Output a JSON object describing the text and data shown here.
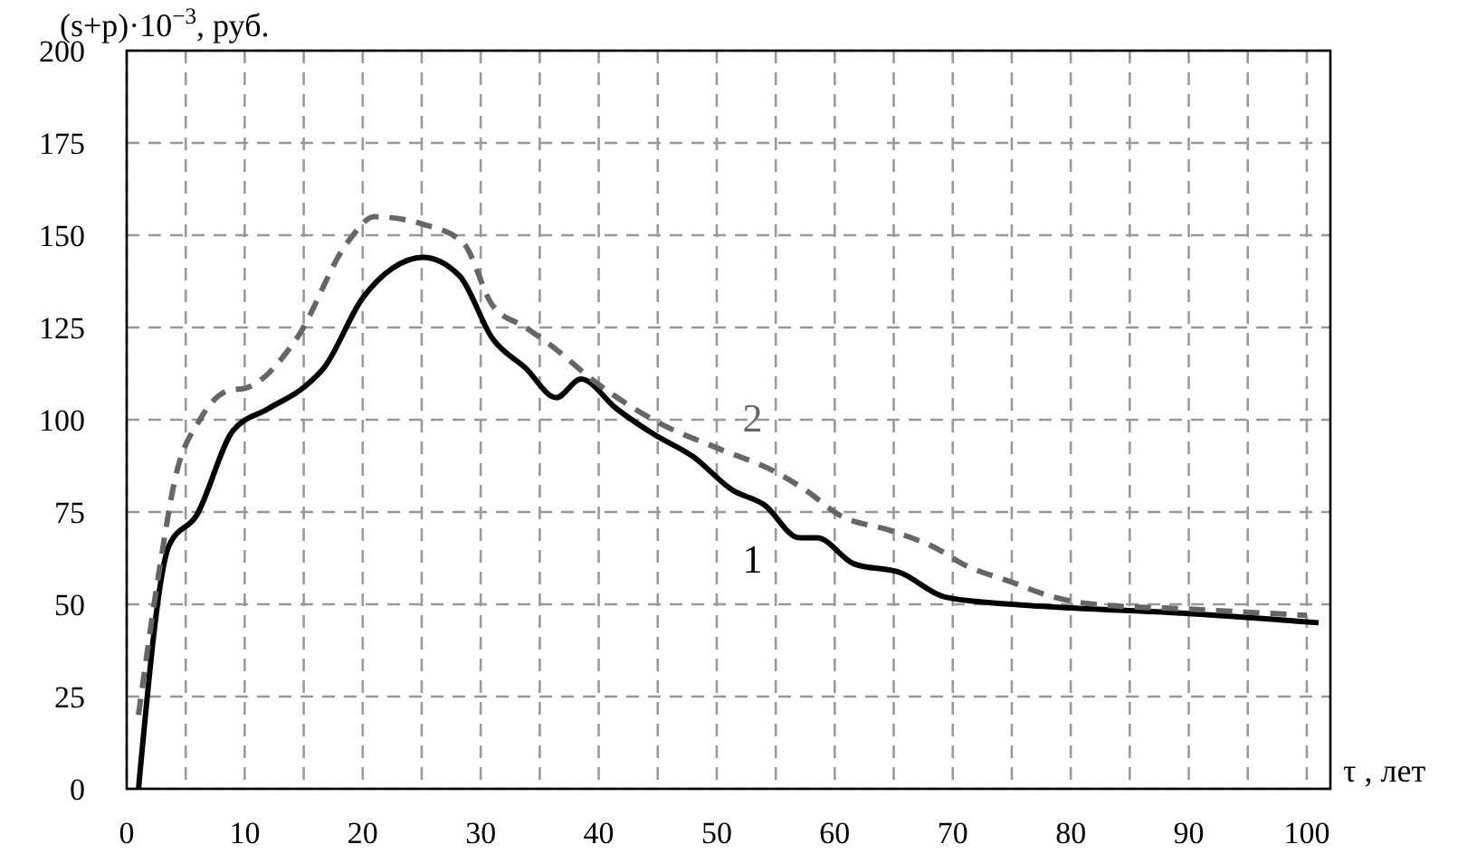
{
  "chart_data": {
    "type": "line",
    "ylabel": "(s+p)·10$^{−3}$, руб.",
    "xlabel": "τ , лет",
    "xlim": [
      0,
      102
    ],
    "xticks": [
      0,
      {
        "value": 5,
        "label": null
      },
      10,
      {
        "value": 15,
        "label": null
      },
      20,
      {
        "value": 25,
        "label": null
      },
      30,
      {
        "value": 35,
        "label": null
      },
      40,
      {
        "value": 45,
        "label": null
      },
      50,
      {
        "value": 55,
        "label": null
      },
      60,
      {
        "value": 65,
        "label": null
      },
      70,
      {
        "value": 75,
        "label": null
      },
      80,
      {
        "value": 85,
        "label": null
      },
      90,
      {
        "value": 95,
        "label": null
      },
      100
    ],
    "ylim": [
      0,
      200
    ],
    "yticks": [
      0,
      25,
      50,
      75,
      100,
      125,
      150,
      175,
      200
    ],
    "grid": true,
    "series": [
      {
        "name": "1",
        "color": "#000000",
        "line_style": "solid",
        "x": [
          1,
          3.6,
          5.9,
          9,
          12,
          15.1,
          16.7,
          20,
          22.5,
          25.1,
          28.2,
          31,
          33.8,
          36.4,
          38.5,
          41.5,
          44.7,
          48,
          51.3,
          54,
          57,
          58.5,
          61.6,
          65.6,
          69.3,
          75,
          80,
          90,
          101
        ],
        "values": [
          0,
          66,
          74,
          97,
          103,
          109,
          114,
          133,
          141,
          144,
          139,
          122,
          114,
          106,
          111,
          103,
          96,
          90,
          81,
          77,
          68,
          68,
          61,
          58.5,
          52,
          50,
          49,
          47.5,
          45
        ]
      },
      {
        "name": "2",
        "color": "#666666",
        "line_style": "dashed",
        "x": [
          1,
          2.8,
          4.1,
          6.2,
          8.7,
          10,
          14.4,
          18.7,
          21,
          25.1,
          28.5,
          31,
          33.8,
          36,
          39.8,
          45.2,
          50.3,
          54.9,
          57.5,
          60.5,
          64.7,
          68.7,
          70.8,
          75,
          78.5,
          82,
          90,
          100
        ],
        "values": [
          20,
          60,
          84,
          100,
          108,
          108.5,
          122,
          148,
          155,
          153,
          148,
          131,
          125,
          120,
          110,
          99,
          92,
          86,
          81,
          74,
          70,
          65,
          61,
          56,
          52,
          50,
          48.7,
          47
        ]
      }
    ]
  }
}
